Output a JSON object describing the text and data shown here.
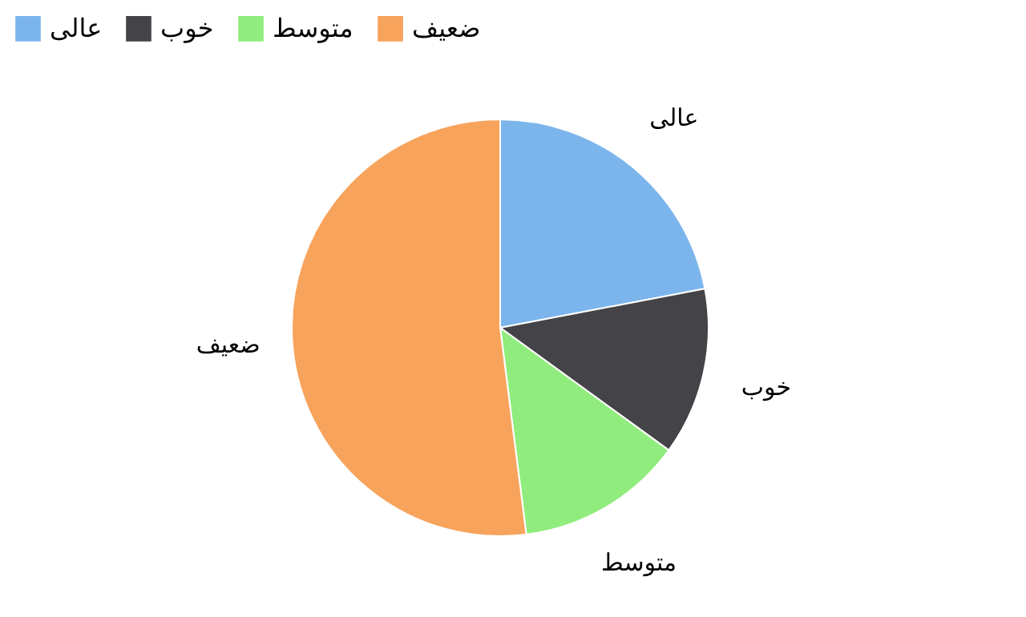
{
  "chart_data": {
    "type": "pie",
    "categories": [
      "عالی",
      "خوب",
      "متوسط",
      "ضعیف"
    ],
    "values": [
      22,
      13,
      13,
      52
    ],
    "colors": [
      "#7cb5ec",
      "#434348",
      "#90ed7d",
      "#f7a35c"
    ],
    "legend": "top"
  }
}
